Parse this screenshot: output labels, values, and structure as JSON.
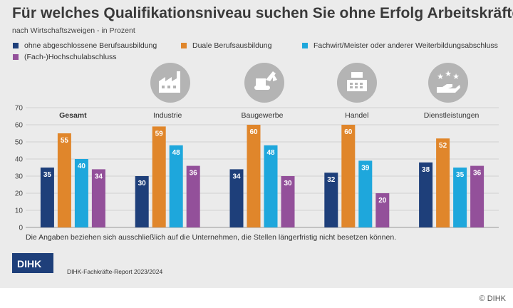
{
  "title": "Für welches Qualifikationsniveau suchen Sie ohne Erfolg Arbeitskräfte?",
  "subtitle": "nach Wirtschaftszweigen - in Prozent",
  "legend": [
    {
      "label": "ohne abgeschlossene Berufsausbildung",
      "color": "#1e3f7a"
    },
    {
      "label": "Duale Berufsausbildung",
      "color": "#e0862b"
    },
    {
      "label": "Fachwirt/Meister oder anderer Weiterbildungsabschluss",
      "color": "#1ea7dc"
    },
    {
      "label": "(Fach-)Hochschulabschluss",
      "color": "#93509a"
    }
  ],
  "icons": [
    "factory-icon",
    "excavator-icon",
    "cash-register-icon",
    "stars-hand-icon"
  ],
  "chart_data": {
    "type": "bar",
    "categories": [
      "Gesamt",
      "Industrie",
      "Baugewerbe",
      "Handel",
      "Dienstleistungen"
    ],
    "series": [
      {
        "name": "ohne abgeschlossene Berufsausbildung",
        "values": [
          35,
          30,
          34,
          32,
          38
        ]
      },
      {
        "name": "Duale Berufsausbildung",
        "values": [
          55,
          59,
          60,
          60,
          52
        ]
      },
      {
        "name": "Fachwirt/Meister oder anderer Weiterbildungsabschluss",
        "values": [
          40,
          48,
          48,
          39,
          35
        ]
      },
      {
        "name": "(Fach-)Hochschulabschluss",
        "values": [
          34,
          36,
          30,
          20,
          36
        ]
      }
    ],
    "ylim": [
      0,
      70
    ],
    "yticks": [
      0,
      10,
      20,
      30,
      40,
      50,
      60,
      70
    ],
    "title": "Für welches Qualifikationsniveau suchen Sie ohne Erfolg Arbeitskräfte?",
    "xlabel": "",
    "ylabel": "",
    "bold_category": "Gesamt"
  },
  "footnote": "Die Angaben beziehen sich ausschließlich auf die Unternehmen, die Stellen längerfristig nicht besetzen können.",
  "logo_text": "DIHK",
  "source": "DIHK-Fachkräfte-Report 2023/2024",
  "copyright": "© DIHK"
}
